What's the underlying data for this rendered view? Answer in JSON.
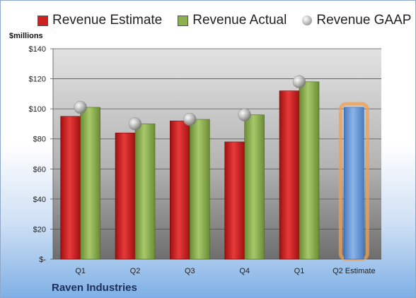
{
  "legend": {
    "items": [
      {
        "label": "Revenue Estimate",
        "color": "#cc2222",
        "marker": "box"
      },
      {
        "label": "Revenue Actual",
        "color": "#8cb050",
        "marker": "box"
      },
      {
        "label": "Revenue GAAP",
        "color": "#b8b8b8",
        "marker": "dot"
      }
    ]
  },
  "unit_label": "$millions",
  "company": "Raven Industries",
  "chart_data": {
    "type": "bar",
    "categories": [
      "Q1",
      "Q2",
      "Q3",
      "Q4",
      "Q1",
      "Q2 Estimate"
    ],
    "ylim": [
      0,
      140
    ],
    "yticks": [
      0,
      20,
      40,
      60,
      80,
      100,
      120,
      140
    ],
    "ytick_labels": [
      "$-",
      "$20",
      "$40",
      "$60",
      "$80",
      "$100",
      "$120",
      "$140"
    ],
    "ylabel": "$millions",
    "grid": true,
    "legend_position": "top",
    "series": [
      {
        "name": "Revenue Estimate",
        "type": "bar",
        "color": "#cc2222",
        "values": [
          95,
          84,
          92,
          78,
          112,
          null
        ]
      },
      {
        "name": "Revenue Actual",
        "type": "bar",
        "color": "#8cb050",
        "values": [
          101,
          90,
          93,
          96,
          118,
          null
        ]
      },
      {
        "name": "Revenue GAAP",
        "type": "scatter",
        "color": "#b8b8b8",
        "values": [
          101,
          90,
          93,
          96,
          118,
          null
        ]
      },
      {
        "name": "Revenue Estimate",
        "type": "bar",
        "color": "#6a9ad8",
        "highlight": "#f0a050",
        "values": [
          null,
          null,
          null,
          null,
          null,
          101
        ]
      }
    ]
  }
}
